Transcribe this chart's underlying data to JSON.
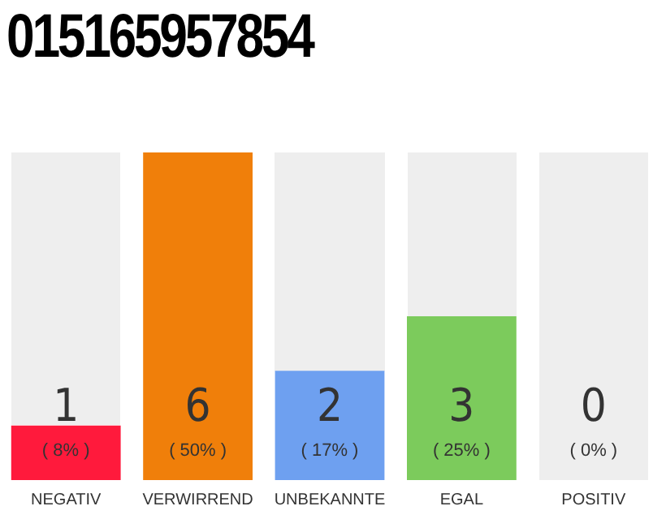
{
  "chart_data": {
    "type": "bar",
    "title": "015165957854",
    "categories": [
      "NEGATIV",
      "VERWIRREND",
      "UNBEKANNTE",
      "EGAL",
      "POSITIV"
    ],
    "values": [
      1,
      6,
      2,
      3,
      0
    ],
    "colors": [
      "#ff1a3c",
      "#f07f0a",
      "#6ea0f0",
      "#7ccb5c",
      "#cccccc"
    ],
    "value_labels": [
      "1\n( 8% )",
      "6\n( 50% )",
      "2\n( 17% )",
      "3\n( 25% )",
      "0\n( 0% )"
    ],
    "grid": false,
    "legend": false
  }
}
